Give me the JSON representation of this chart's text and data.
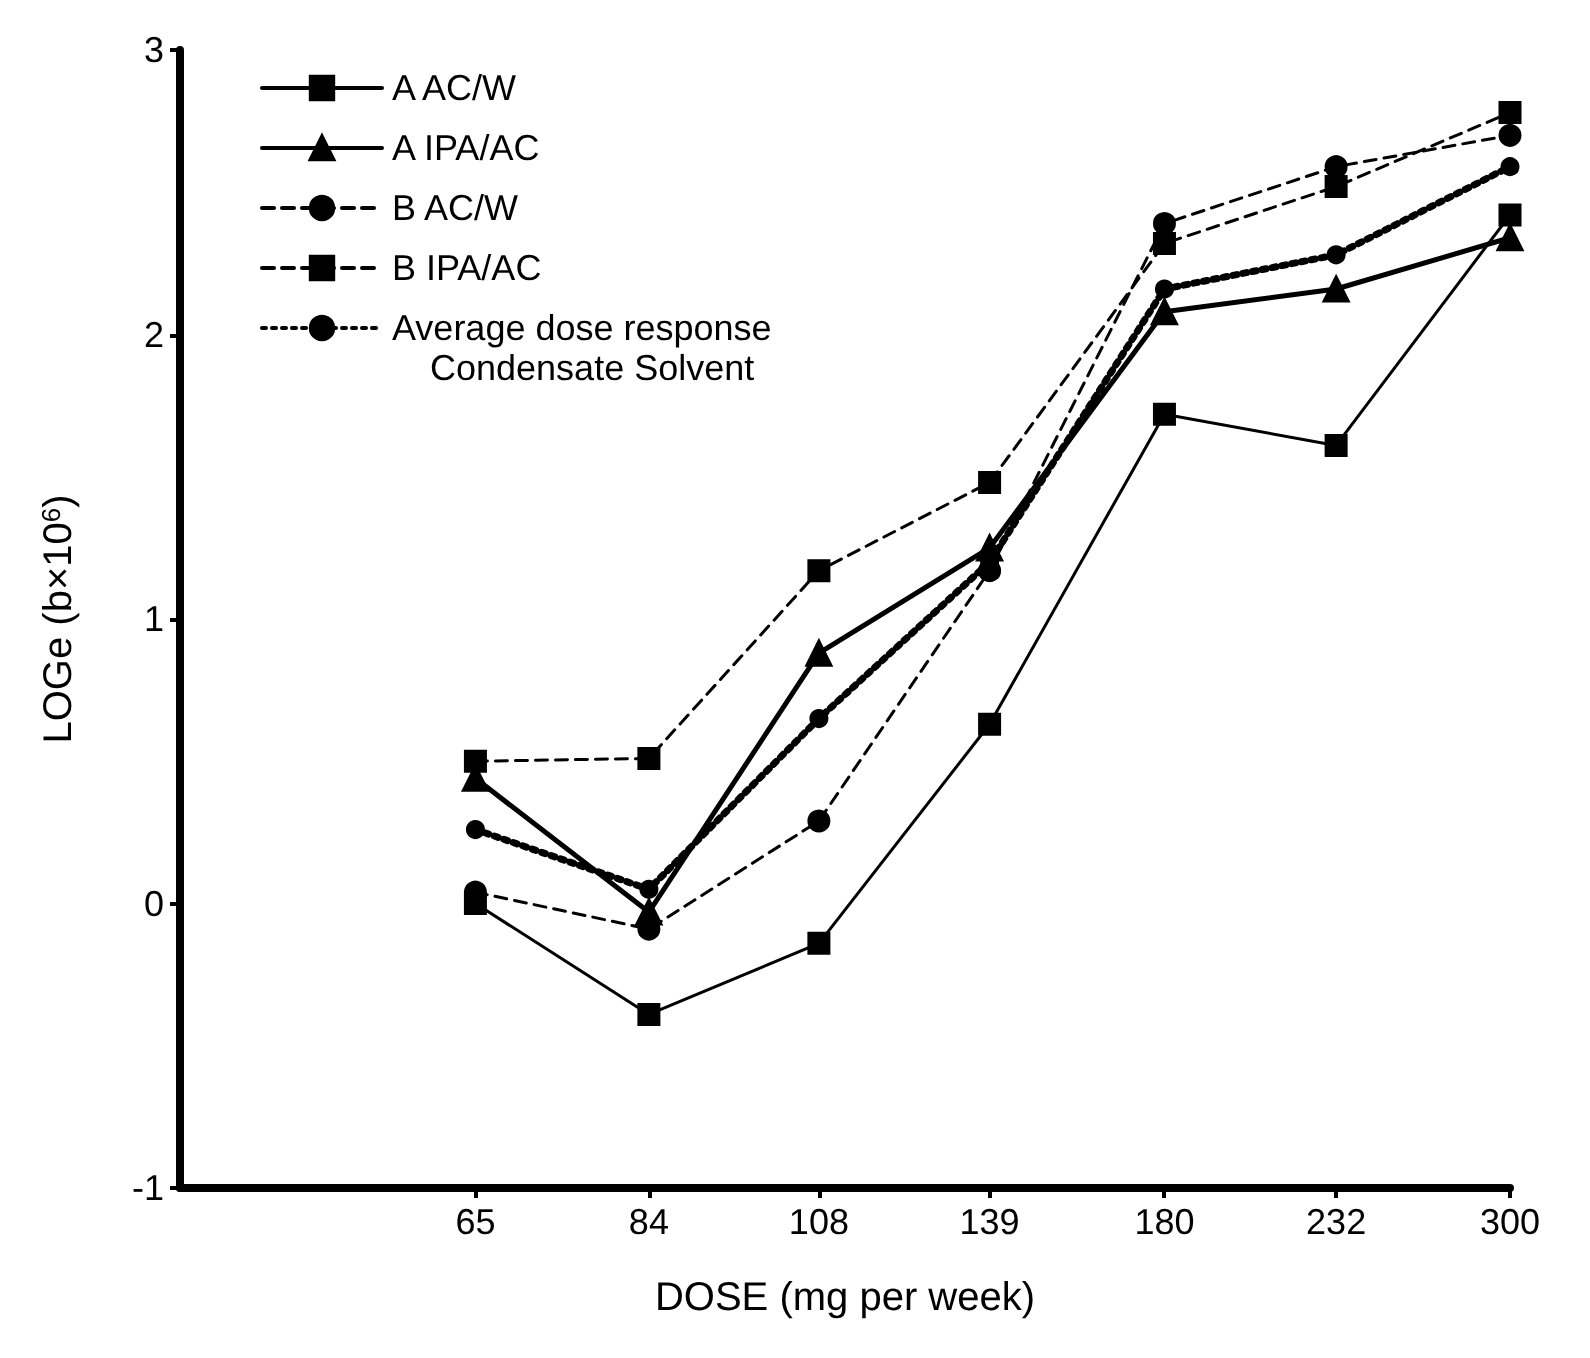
{
  "chart_data": {
    "type": "line",
    "xlabel": "DOSE (mg per week)",
    "ylabel": "LOGe (b×10$^{6}$)",
    "legend_title": "Condensate Solvent",
    "x": [
      65,
      84,
      108,
      139,
      180,
      232,
      300
    ],
    "xlim": [
      42,
      300
    ],
    "xticks": [
      65,
      84,
      108,
      139,
      180,
      232,
      300
    ],
    "log": "x",
    "ylim": [
      -1,
      3
    ],
    "yticks": [
      -1,
      0,
      1,
      2,
      3
    ],
    "grid": false,
    "legend": "top left",
    "series": [
      {
        "name": "A AC/W",
        "color": "#000000",
        "marker": "square",
        "line_style": "solid",
        "values": [
          0,
          -0.39,
          -0.14,
          0.63,
          1.72,
          1.61,
          2.42
        ]
      },
      {
        "name": "A IPA/AC",
        "color": "#000000",
        "marker": "triangle",
        "line_style": "solid",
        "values": [
          0.44,
          -0.03,
          0.88,
          1.25,
          2.08,
          2.16,
          2.34
        ]
      },
      {
        "name": "B AC/W",
        "color": "#000000",
        "marker": "circle",
        "line_style": "dashed",
        "values": [
          0.04,
          -0.09,
          0.29,
          1.17,
          2.39,
          2.59,
          2.7
        ]
      },
      {
        "name": "B IPA/AC",
        "color": "#000000",
        "marker": "square",
        "line_style": "dashed",
        "values": [
          0.5,
          0.51,
          1.17,
          1.48,
          2.32,
          2.52,
          2.78
        ]
      },
      {
        "name": "Average dose response",
        "color": "#000000",
        "marker": "circle",
        "line_style": "dotted",
        "values": [
          0.26,
          0.05,
          0.65,
          1.2,
          2.16,
          2.28,
          2.59
        ]
      }
    ]
  }
}
